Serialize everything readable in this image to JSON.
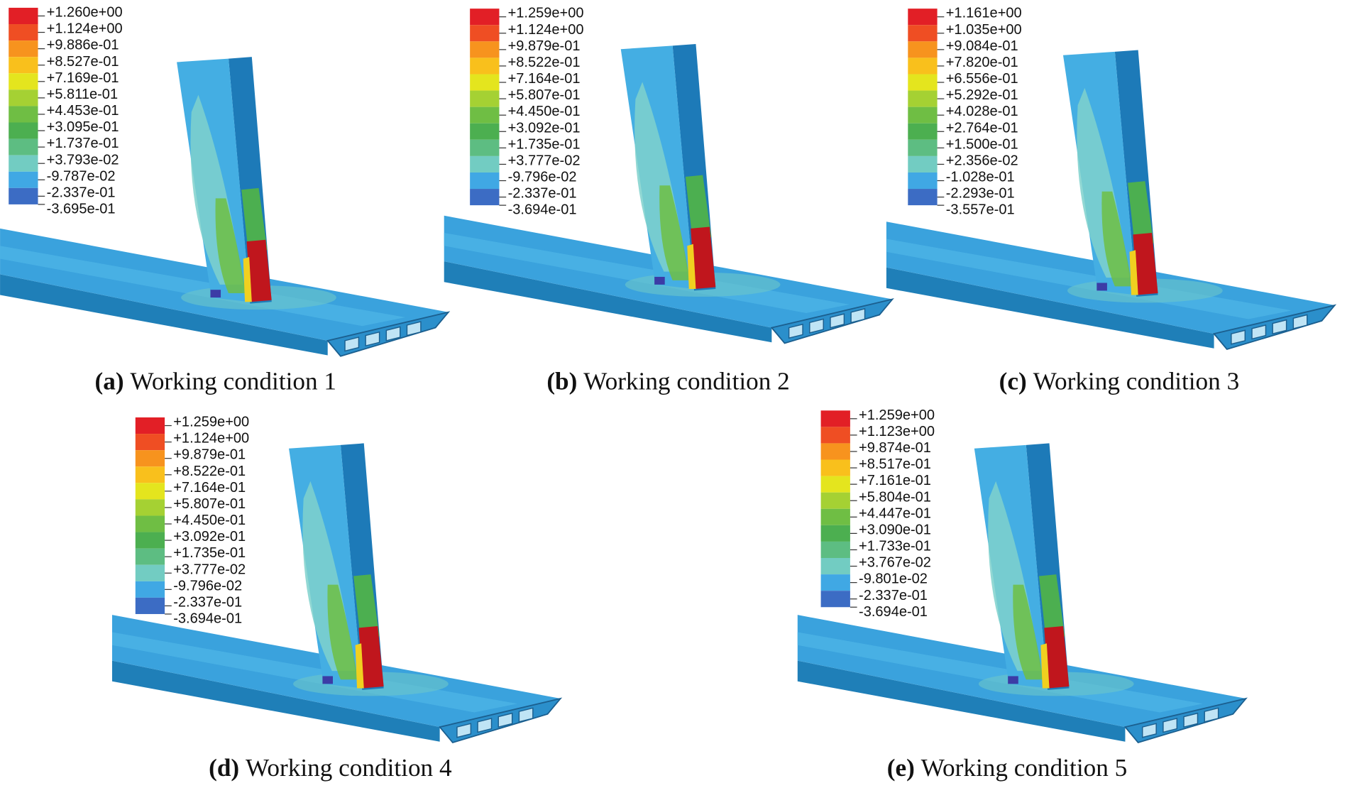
{
  "panels": [
    {
      "legend": [
        "+1.260e+00",
        "+1.124e+00",
        "+9.886e-01",
        "+8.527e-01",
        "+7.169e-01",
        "+5.811e-01",
        "+4.453e-01",
        "+3.095e-01",
        "+1.737e-01",
        "+3.793e-02",
        "-9.787e-02",
        "-2.337e-01",
        "-3.695e-01"
      ],
      "tag": "(a)",
      "caption": "Working condition 1"
    },
    {
      "legend": [
        "+1.259e+00",
        "+1.124e+00",
        "+9.879e-01",
        "+8.522e-01",
        "+7.164e-01",
        "+5.807e-01",
        "+4.450e-01",
        "+3.092e-01",
        "+1.735e-01",
        "+3.777e-02",
        "-9.796e-02",
        "-2.337e-01",
        "-3.694e-01"
      ],
      "tag": "(b)",
      "caption": "Working condition 2"
    },
    {
      "legend": [
        "+1.161e+00",
        "+1.035e+00",
        "+9.084e-01",
        "+7.820e-01",
        "+6.556e-01",
        "+5.292e-01",
        "+4.028e-01",
        "+2.764e-01",
        "+1.500e-01",
        "+2.356e-02",
        "-1.028e-01",
        "-2.293e-01",
        "-3.557e-01"
      ],
      "tag": "(c)",
      "caption": "Working condition 3"
    },
    {
      "legend": [
        "+1.259e+00",
        "+1.124e+00",
        "+9.879e-01",
        "+8.522e-01",
        "+7.164e-01",
        "+5.807e-01",
        "+4.450e-01",
        "+3.092e-01",
        "+1.735e-01",
        "+3.777e-02",
        "-9.796e-02",
        "-2.337e-01",
        "-3.694e-01"
      ],
      "tag": "(d)",
      "caption": "Working condition 4"
    },
    {
      "legend": [
        "+1.259e+00",
        "+1.123e+00",
        "+9.874e-01",
        "+8.517e-01",
        "+7.161e-01",
        "+5.804e-01",
        "+4.447e-01",
        "+3.090e-01",
        "+1.733e-01",
        "+3.767e-02",
        "-9.801e-02",
        "-2.337e-01",
        "-3.694e-01"
      ],
      "tag": "(e)",
      "caption": "Working condition 5"
    }
  ]
}
